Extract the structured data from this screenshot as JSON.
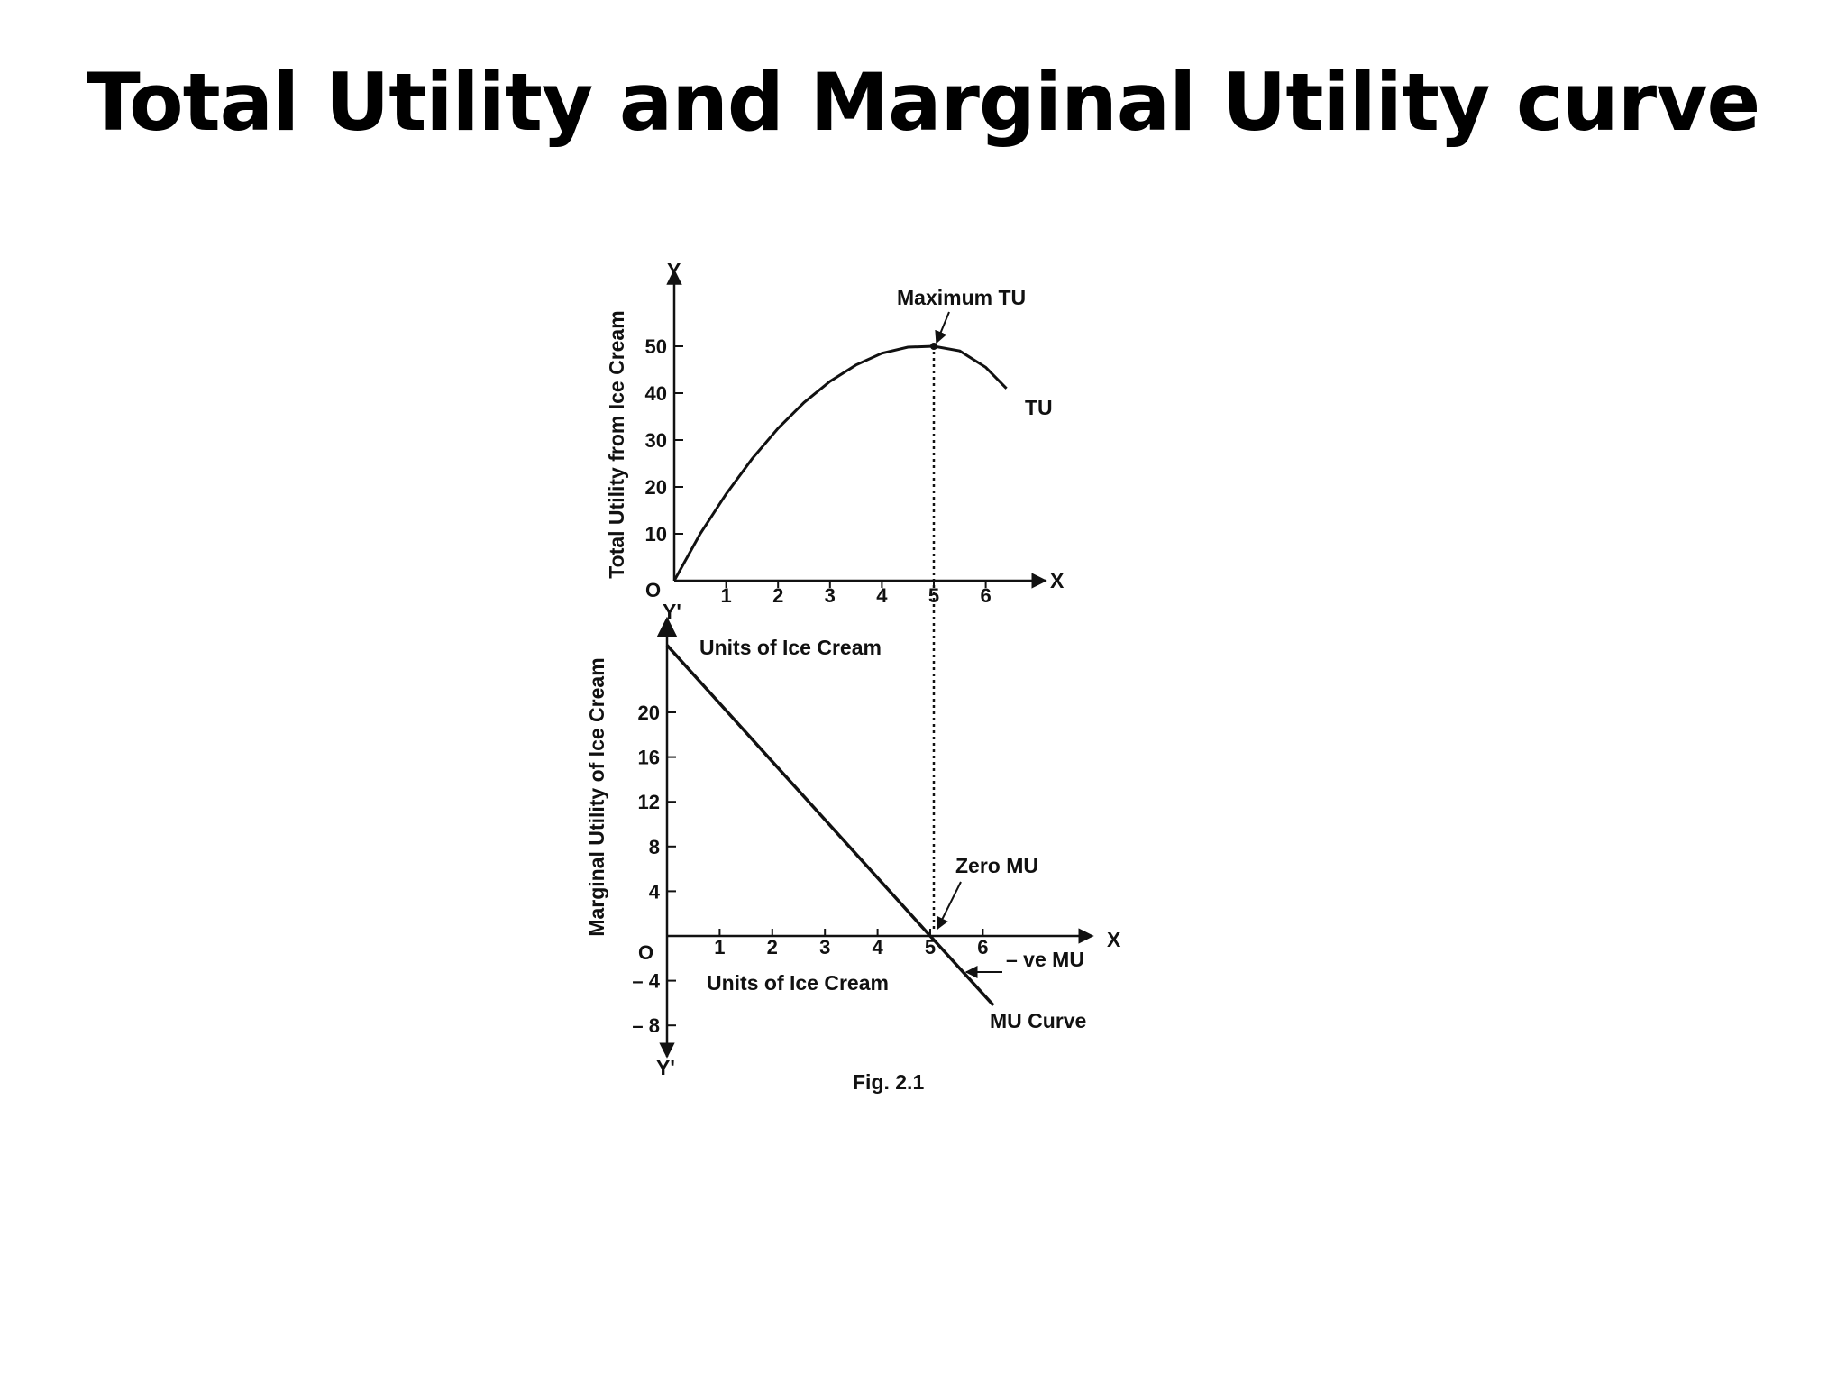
{
  "title": "Total Utility and Marginal Utility curve",
  "figure_caption": "Fig. 2.1",
  "chart_data": [
    {
      "type": "line",
      "ylabel": "Total Utility from Ice Cream",
      "xlabel": "",
      "origin_label": "O",
      "x_axis_letter": "X",
      "y_axis_letter": "Y",
      "x_ticks": [
        "1",
        "2",
        "3",
        "4",
        "5",
        "6"
      ],
      "y_ticks": [
        "10",
        "20",
        "30",
        "40",
        "50"
      ],
      "xlim": [
        0,
        7.3
      ],
      "ylim": [
        0,
        65
      ],
      "series": [
        {
          "name": "TU",
          "x": [
            0,
            0.5,
            1,
            1.5,
            2,
            2.5,
            3,
            3.5,
            4,
            4.5,
            5,
            5.5,
            6,
            6.4
          ],
          "y": [
            0,
            10,
            18.5,
            26,
            32.5,
            38,
            42.5,
            46,
            48.5,
            49.8,
            50,
            49,
            45.5,
            41
          ]
        }
      ],
      "annotations": [
        {
          "text": "Maximum TU",
          "x": 5,
          "y": 50
        }
      ],
      "guide_line_x": 5
    },
    {
      "type": "line",
      "ylabel": "Marginal Utility of Ice Cream",
      "xlabel": "Units of Ice Cream",
      "x_label_top": "Units of Ice Cream",
      "origin_label": "O",
      "x_axis_letter": "X",
      "y_axis_letter_top": "Y'",
      "y_axis_letter_bottom": "Y'",
      "x_ticks": [
        "1",
        "2",
        "3",
        "4",
        "5",
        "6"
      ],
      "y_ticks": [
        "20",
        "16",
        "12",
        "8",
        "4",
        "– 4",
        "– 8"
      ],
      "y_tick_values": [
        20,
        16,
        12,
        8,
        4,
        -4,
        -8
      ],
      "xlim": [
        0,
        8.8
      ],
      "ylim": [
        -12,
        27
      ],
      "series": [
        {
          "name": "MU Curve",
          "x": [
            0,
            5,
            6.2
          ],
          "y": [
            26,
            0,
            -6.2
          ]
        }
      ],
      "annotations": [
        {
          "text": "Zero MU",
          "x": 5,
          "y": 0
        },
        {
          "text": "– ve MU",
          "x": 6,
          "y": -2
        }
      ]
    }
  ]
}
